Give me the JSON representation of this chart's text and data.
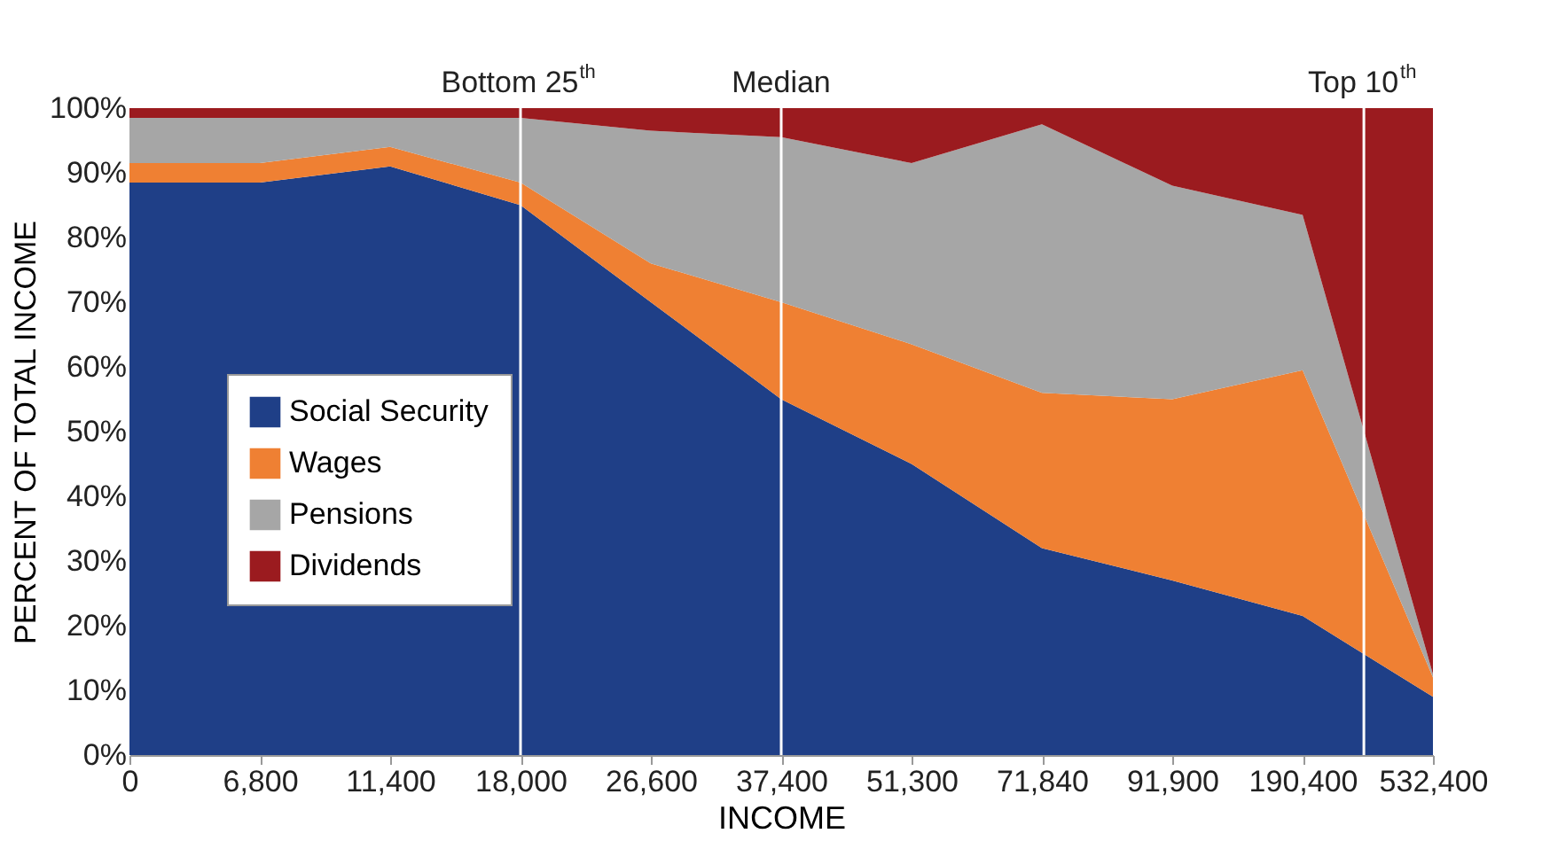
{
  "chart_data": {
    "type": "area",
    "stacked": true,
    "xlabel": "INCOME",
    "ylabel": "PERCENT OF TOTAL INCOME",
    "categories": [
      "0",
      "6,800",
      "11,400",
      "18,000",
      "26,600",
      "37,400",
      "51,300",
      "71,840",
      "91,900",
      "190,400",
      "532,400"
    ],
    "ylim": [
      0,
      100
    ],
    "yticks": [
      {
        "value": 0,
        "label": "0%"
      },
      {
        "value": 10,
        "label": "10%"
      },
      {
        "value": 20,
        "label": "20%"
      },
      {
        "value": 30,
        "label": "30%"
      },
      {
        "value": 40,
        "label": "40%"
      },
      {
        "value": 50,
        "label": "50%"
      },
      {
        "value": 60,
        "label": "60%"
      },
      {
        "value": 70,
        "label": "70%"
      },
      {
        "value": 80,
        "label": "80%"
      },
      {
        "value": 90,
        "label": "90%"
      },
      {
        "value": 100,
        "label": "100%"
      }
    ],
    "series": [
      {
        "name": "Social Security",
        "color": "#1f3f87",
        "values": [
          88.5,
          88.5,
          91,
          85,
          70,
          55,
          45,
          32,
          27,
          21.5,
          9
        ]
      },
      {
        "name": "Wages",
        "color": "#ef8033",
        "values": [
          3,
          3,
          3,
          3.5,
          6,
          15,
          18.5,
          24,
          28,
          38,
          3
        ]
      },
      {
        "name": "Pensions",
        "color": "#a6a6a6",
        "values": [
          7,
          7,
          4.5,
          10,
          20.5,
          25.5,
          28,
          41.5,
          33,
          24,
          0.5
        ]
      },
      {
        "name": "Dividends",
        "color": "#9b1b1f",
        "values": [
          1.5,
          1.5,
          1.5,
          1.5,
          3.5,
          4.5,
          8.5,
          2.5,
          12,
          16.5,
          87.5
        ]
      }
    ],
    "ref_lines": [
      {
        "axis": "x",
        "value": "18,000",
        "label": "Bottom 25$^{th}$",
        "color": "#ffffff"
      },
      {
        "axis": "x",
        "value": "37,400",
        "label": "Median",
        "color": "#ffffff"
      }
    ],
    "annotations": [
      "Top 10$^{th}$"
    ],
    "legend": "left",
    "grid": false
  }
}
